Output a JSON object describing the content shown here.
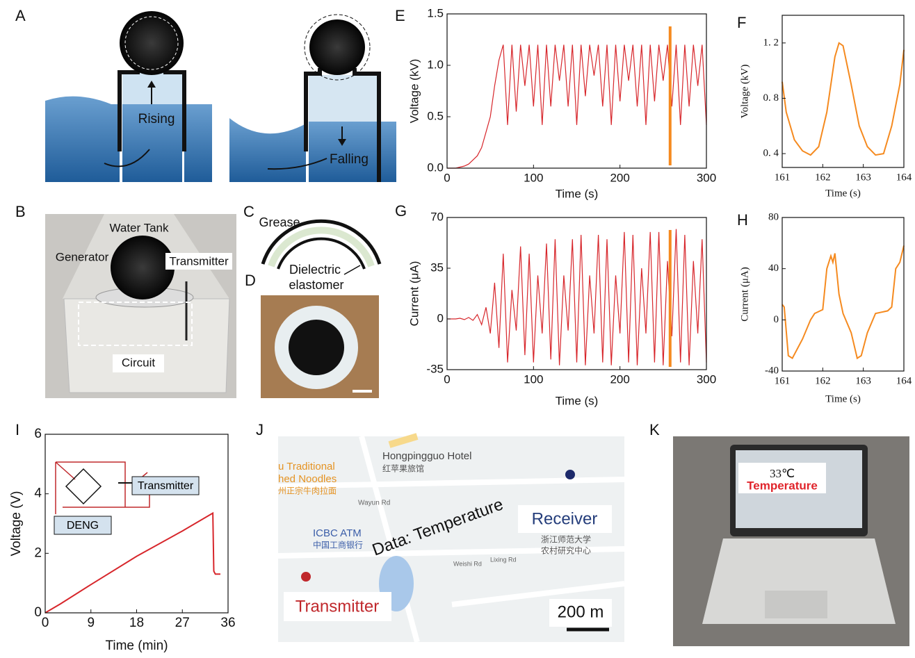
{
  "panel_labels": [
    "A",
    "B",
    "C",
    "D",
    "E",
    "F",
    "G",
    "H",
    "I",
    "J",
    "K"
  ],
  "panels": {
    "A": {
      "rising": "Rising",
      "falling": "Falling"
    },
    "B": {
      "water_tank": "Water Tank",
      "generator": "Generator",
      "transmitter": "Transmitter",
      "circuit": "Circuit"
    },
    "C": {
      "grease": "Grease",
      "dielectric": "Dielectric",
      "elastomer": "elastomer"
    },
    "I_inset": {
      "transmitter": "Transmitter",
      "deng": "DENG"
    },
    "J": {
      "hotel": "Hongpingguo Hotel",
      "hotel_cn": "红苹果旅馆",
      "noodles1": "u Traditional",
      "noodles2": "hed Noodles",
      "noodles_cn": "州正宗牛肉拉面",
      "wayun": "Wayun Rd",
      "icbc": "ICBC ATM",
      "icbc_cn": "中国工商银行",
      "data": "Data: Temperature",
      "receiver": "Receiver",
      "univ1": "浙江师范大学",
      "univ2": "农村研究中心",
      "weishi": "Weishi Rd",
      "lixing": "Lixing Rd",
      "transmitter": "Transmitter",
      "scale": "200 m"
    },
    "K": {
      "temp_value": "33℃",
      "temp_label": "Temperature"
    }
  },
  "chart_data": [
    {
      "type": "line",
      "xlabel": "Time (s)",
      "ylabel": "Voltage (kV)",
      "color": "#d7262b",
      "highlight_x": 258,
      "highlight_color": "#f58a1f",
      "xlim": [
        0,
        300
      ],
      "xticks": [
        0,
        100,
        200,
        300
      ],
      "ylim": [
        0,
        1.5
      ],
      "yticks": [
        {
          "value": 0,
          "label": "0.0"
        },
        0.5,
        {
          "value": 1,
          "label": "1.0"
        },
        1.5
      ],
      "x": [
        0,
        5,
        10,
        15,
        20,
        25,
        30,
        35,
        40,
        45,
        50,
        55,
        60,
        65,
        70,
        75,
        80,
        85,
        90,
        95,
        100,
        105,
        110,
        115,
        120,
        125,
        130,
        135,
        140,
        145,
        150,
        155,
        160,
        165,
        170,
        175,
        180,
        185,
        190,
        195,
        200,
        205,
        210,
        215,
        220,
        225,
        230,
        235,
        240,
        245,
        250,
        255,
        260,
        265,
        270,
        275,
        280,
        285,
        290,
        295,
        300
      ],
      "values": [
        0,
        0,
        0,
        0.01,
        0.02,
        0.04,
        0.08,
        0.12,
        0.2,
        0.35,
        0.5,
        0.8,
        1.05,
        1.2,
        0.42,
        1.2,
        0.55,
        1.2,
        0.8,
        1.2,
        0.6,
        1.2,
        0.42,
        1.2,
        0.6,
        1.2,
        0.85,
        1.2,
        0.6,
        1.2,
        0.42,
        1.2,
        0.7,
        1.2,
        0.9,
        1.2,
        0.6,
        1.2,
        0.42,
        1.2,
        0.65,
        1.2,
        0.85,
        1.2,
        0.6,
        1.2,
        0.42,
        1.2,
        0.65,
        1.2,
        0.85,
        1.2,
        0.6,
        1.2,
        0.42,
        1.2,
        0.6,
        1.2,
        0.8,
        1.2,
        0.42
      ]
    },
    {
      "type": "line",
      "xlabel": "Time (s)",
      "ylabel": "Voltage (kV)",
      "color": "#f58a1f",
      "serif": true,
      "xlim": [
        161,
        164
      ],
      "xticks": [
        161,
        162,
        163,
        164
      ],
      "ylim": [
        0.3,
        1.4
      ],
      "yticks": [
        {
          "value": 0.4,
          "label": "0. 4"
        },
        {
          "value": 0.8,
          "label": "0. 8"
        },
        {
          "value": 1.2,
          "label": "1. 2"
        }
      ],
      "x": [
        161,
        161.1,
        161.3,
        161.5,
        161.7,
        161.9,
        162.1,
        162.3,
        162.4,
        162.5,
        162.7,
        162.9,
        163.1,
        163.3,
        163.5,
        163.7,
        163.9,
        164
      ],
      "values": [
        0.92,
        0.7,
        0.5,
        0.42,
        0.39,
        0.45,
        0.7,
        1.1,
        1.2,
        1.18,
        0.9,
        0.6,
        0.45,
        0.39,
        0.4,
        0.6,
        0.9,
        1.15
      ]
    },
    {
      "type": "line",
      "xlabel": "Time (s)",
      "ylabel": "Current (μA)",
      "color": "#d7262b",
      "highlight_x": 258,
      "highlight_color": "#f58a1f",
      "xlim": [
        0,
        300
      ],
      "xticks": [
        0,
        100,
        200,
        300
      ],
      "ylim": [
        -35,
        70
      ],
      "yticks": [
        -35,
        0,
        35,
        70
      ],
      "x": [
        0,
        5,
        10,
        15,
        20,
        25,
        30,
        35,
        40,
        45,
        50,
        55,
        60,
        65,
        70,
        75,
        80,
        85,
        90,
        95,
        100,
        105,
        110,
        115,
        120,
        125,
        130,
        135,
        140,
        145,
        150,
        155,
        160,
        165,
        170,
        175,
        180,
        185,
        190,
        195,
        200,
        205,
        210,
        215,
        220,
        225,
        230,
        235,
        240,
        245,
        250,
        255,
        260,
        265,
        270,
        275,
        280,
        285,
        290,
        295,
        300
      ],
      "values": [
        0,
        0,
        0,
        0.5,
        -0.5,
        1,
        -1,
        3,
        -4,
        8,
        -10,
        25,
        -20,
        45,
        -30,
        20,
        -8,
        50,
        -25,
        45,
        -30,
        30,
        -10,
        52,
        -28,
        55,
        -32,
        30,
        -8,
        55,
        -30,
        58,
        -32,
        30,
        -10,
        58,
        -30,
        55,
        -32,
        30,
        -10,
        60,
        -30,
        58,
        -32,
        35,
        -10,
        60,
        -30,
        60,
        -32,
        40,
        -12,
        62,
        -30,
        58,
        -32,
        40,
        -10,
        55,
        -30
      ]
    },
    {
      "type": "line",
      "xlabel": "Time (s)",
      "ylabel": "Current (μA)",
      "color": "#f58a1f",
      "serif": true,
      "xlim": [
        161,
        164
      ],
      "xticks": [
        161,
        162,
        163,
        164
      ],
      "ylim": [
        -40,
        80
      ],
      "yticks": [
        -40,
        0,
        40,
        80
      ],
      "x": [
        161,
        161.05,
        161.15,
        161.25,
        161.5,
        161.7,
        161.8,
        162,
        162.1,
        162.2,
        162.25,
        162.3,
        162.4,
        162.5,
        162.7,
        162.85,
        162.95,
        163.1,
        163.3,
        163.6,
        163.7,
        163.8,
        163.9,
        164
      ],
      "values": [
        12,
        10,
        -28,
        -30,
        -15,
        0,
        5,
        8,
        40,
        50,
        45,
        52,
        20,
        5,
        -10,
        -30,
        -28,
        -10,
        5,
        7,
        10,
        40,
        45,
        58
      ]
    },
    {
      "type": "line",
      "xlabel": "Time (min)",
      "ylabel": "Voltage (V)",
      "color": "#d7262b",
      "xlim": [
        0,
        36
      ],
      "xticks": [
        0,
        9,
        18,
        27,
        36
      ],
      "ylim": [
        0,
        6
      ],
      "yticks": [
        0,
        2,
        4,
        6
      ],
      "x": [
        0,
        3,
        9,
        18,
        27,
        33,
        33.2,
        33.5,
        34.5
      ],
      "values": [
        0,
        0.3,
        0.95,
        1.9,
        2.75,
        3.35,
        1.4,
        1.3,
        1.3
      ]
    }
  ]
}
